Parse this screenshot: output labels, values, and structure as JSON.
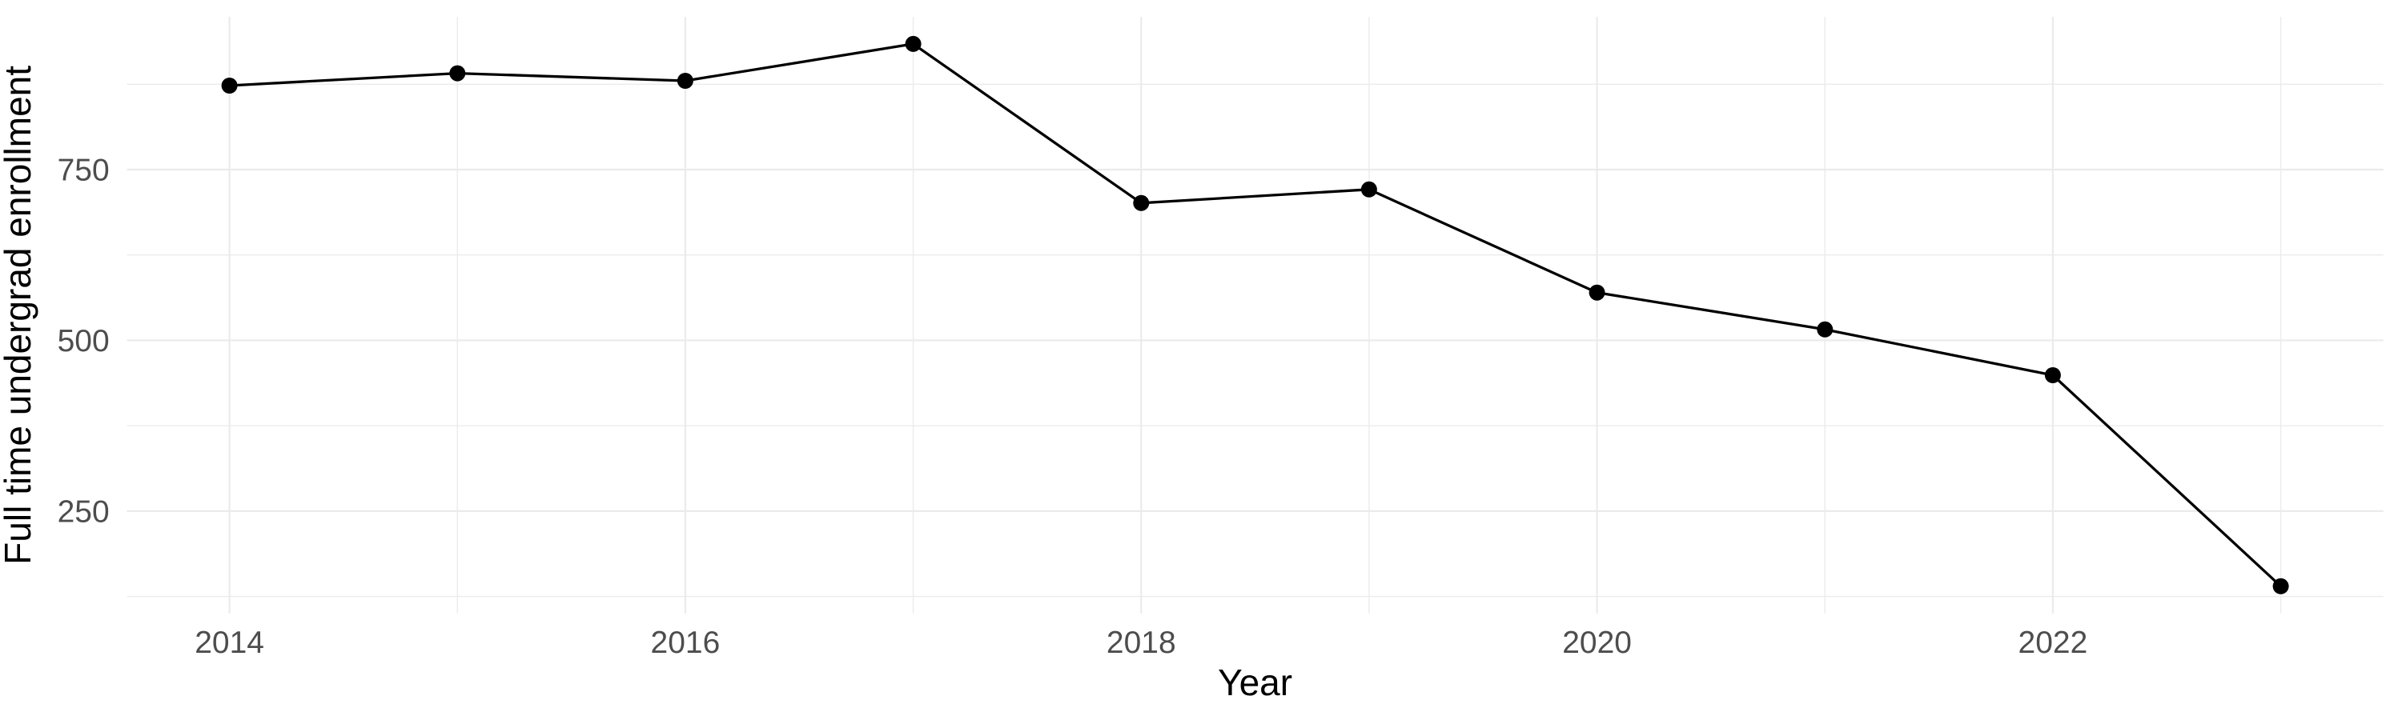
{
  "chart_data": {
    "type": "line",
    "title": "",
    "xlabel": "Year",
    "ylabel": "Full time undergrad enrollment",
    "x": [
      2014,
      2015,
      2016,
      2017,
      2018,
      2019,
      2020,
      2021,
      2022,
      2023
    ],
    "values": [
      873,
      891,
      880,
      934,
      701,
      721,
      570,
      516,
      449,
      140
    ],
    "x_major_ticks": [
      2014,
      2016,
      2018,
      2020,
      2022
    ],
    "x_minor_ticks": [
      2015,
      2017,
      2019,
      2021,
      2023
    ],
    "y_major_ticks": [
      250,
      500,
      750
    ],
    "y_minor_ticks": [
      125,
      375,
      625,
      875
    ],
    "xlim": [
      2013.55,
      2023.45
    ],
    "ylim": [
      100.3,
      973.7
    ],
    "grid": "major-and-minor",
    "legend": "none",
    "style": {
      "background": "#FFFFFF",
      "grid_color": "#EBEBEB",
      "line_color": "#000000",
      "point_color": "#000000",
      "tick_label_color": "#4D4D4D",
      "axis_title_color": "#000000"
    }
  }
}
